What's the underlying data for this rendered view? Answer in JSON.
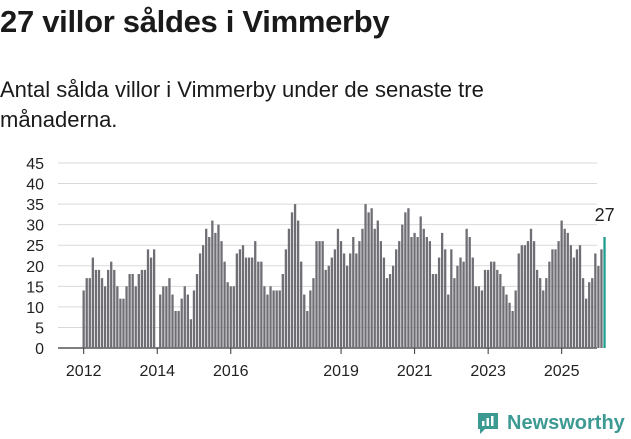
{
  "header": {
    "title": "27 villor såldes i Vimmerby",
    "subtitle": "Antal sålda villor i Vimmerby under de senaste tre månaderna."
  },
  "brand": {
    "name": "Newsworthy",
    "color": "#3d9a93"
  },
  "colors": {
    "bar": "#6f6e74",
    "highlight": "#1d9e8f",
    "grid": "#d9d9d9",
    "text": "#222222"
  },
  "chart_data": {
    "type": "bar",
    "x_start": "2012-01",
    "x_end": "2025-07",
    "ylim": [
      0,
      45
    ],
    "yticks": [
      0,
      5,
      10,
      15,
      20,
      25,
      30,
      35,
      40,
      45
    ],
    "xtick_labels": [
      {
        "label": "2012",
        "month": "2012-01"
      },
      {
        "label": "2014",
        "month": "2014-01"
      },
      {
        "label": "2016",
        "month": "2016-01"
      },
      {
        "label": "2019",
        "month": "2019-01"
      },
      {
        "label": "2021",
        "month": "2021-01"
      },
      {
        "label": "2023",
        "month": "2023-01"
      },
      {
        "label": "2025",
        "month": "2025-01"
      }
    ],
    "grid": "horizontal",
    "values": [
      14,
      17,
      17,
      22,
      19,
      19,
      17,
      15,
      19,
      21,
      19,
      15,
      12,
      12,
      15,
      18,
      18,
      15,
      18,
      19,
      19,
      24,
      22,
      24,
      0,
      13,
      15,
      15,
      17,
      13,
      9,
      9,
      12,
      15,
      13,
      7,
      14,
      18,
      23,
      25,
      29,
      27,
      31,
      28,
      30,
      26,
      21,
      16,
      15,
      15,
      23,
      24,
      25,
      22,
      22,
      22,
      26,
      21,
      21,
      15,
      13,
      15,
      14,
      14,
      14,
      18,
      24,
      29,
      33,
      35,
      31,
      21,
      13,
      9,
      14,
      17,
      26,
      26,
      26,
      19,
      20,
      22,
      24,
      29,
      26,
      23,
      20,
      23,
      27,
      23,
      26,
      29,
      35,
      33,
      34,
      29,
      31,
      26,
      22,
      17,
      18,
      20,
      24,
      26,
      30,
      33,
      34,
      27,
      28,
      27,
      32,
      29,
      27,
      26,
      18,
      18,
      22,
      28,
      24,
      13,
      24,
      17,
      20,
      22,
      21,
      29,
      27,
      22,
      15,
      15,
      14,
      19,
      19,
      21,
      21,
      19,
      18,
      15,
      13,
      11,
      9,
      14,
      23,
      25,
      25,
      26,
      29,
      26,
      19,
      17,
      14,
      17,
      21,
      24,
      24,
      26,
      31,
      29,
      28,
      25,
      22,
      24,
      25,
      17,
      12,
      16,
      17,
      23,
      20,
      24,
      27
    ],
    "annotation": {
      "label": "27",
      "value": 27
    }
  }
}
